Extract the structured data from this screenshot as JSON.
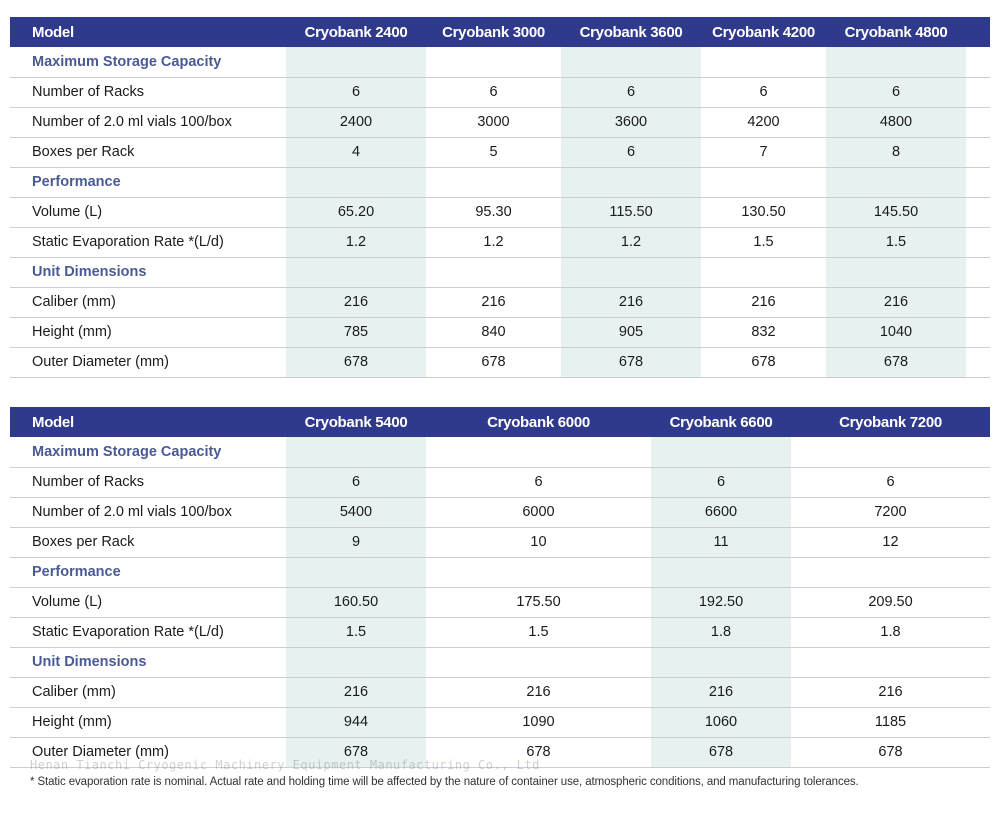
{
  "table1": {
    "model_label": "Model",
    "models": [
      "Cryobank 2400",
      "Cryobank 3000",
      "Cryobank 3600",
      "Cryobank 4200",
      "Cryobank 4800"
    ],
    "sections": [
      {
        "title": "Maximum Storage Capacity",
        "rows": [
          {
            "label": "Number of Racks",
            "values": [
              "6",
              "6",
              "6",
              "6",
              "6"
            ]
          },
          {
            "label": "Number of 2.0 ml vials 100/box",
            "values": [
              "2400",
              "3000",
              "3600",
              "4200",
              "4800"
            ]
          },
          {
            "label": "Boxes per Rack",
            "values": [
              "4",
              "5",
              "6",
              "7",
              "8"
            ]
          }
        ]
      },
      {
        "title": "Performance",
        "rows": [
          {
            "label": "Volume (L)",
            "values": [
              "65.20",
              "95.30",
              "115.50",
              "130.50",
              "145.50"
            ]
          },
          {
            "label": "Static Evaporation Rate *(L/d)",
            "values": [
              "1.2",
              "1.2",
              "1.2",
              "1.5",
              "1.5"
            ]
          }
        ]
      },
      {
        "title": "Unit Dimensions",
        "rows": [
          {
            "label": "Caliber (mm)",
            "values": [
              "216",
              "216",
              "216",
              "216",
              "216"
            ]
          },
          {
            "label": "Height (mm)",
            "values": [
              "785",
              "840",
              "905",
              "832",
              "1040"
            ]
          },
          {
            "label": "Outer Diameter (mm)",
            "values": [
              "678",
              "678",
              "678",
              "678",
              "678"
            ]
          }
        ]
      }
    ]
  },
  "table2": {
    "model_label": "Model",
    "models": [
      "Cryobank 5400",
      "Cryobank 6000",
      "Cryobank 6600",
      "Cryobank 7200"
    ],
    "sections": [
      {
        "title": "Maximum Storage Capacity",
        "rows": [
          {
            "label": "Number of Racks",
            "values": [
              "6",
              "6",
              "6",
              "6"
            ]
          },
          {
            "label": "Number of 2.0 ml vials 100/box",
            "values": [
              "5400",
              "6000",
              "6600",
              "7200"
            ]
          },
          {
            "label": "Boxes per Rack",
            "values": [
              "9",
              "10",
              "11",
              "12"
            ]
          }
        ]
      },
      {
        "title": "Performance",
        "rows": [
          {
            "label": "Volume (L)",
            "values": [
              "160.50",
              "175.50",
              "192.50",
              "209.50"
            ]
          },
          {
            "label": "Static Evaporation Rate *(L/d)",
            "values": [
              "1.5",
              "1.5",
              "1.8",
              "1.8"
            ]
          }
        ]
      },
      {
        "title": "Unit Dimensions",
        "rows": [
          {
            "label": "Caliber (mm)",
            "values": [
              "216",
              "216",
              "216",
              "216"
            ]
          },
          {
            "label": "Height (mm)",
            "values": [
              "944",
              "1090",
              "1060",
              "1185"
            ]
          },
          {
            "label": "Outer Diameter (mm)",
            "values": [
              "678",
              "678",
              "678",
              "678"
            ]
          }
        ]
      }
    ]
  },
  "footnote": "* Static evaporation rate is nominal. Actual rate and holding time will be affected by the nature of container use, atmospheric conditions, and manufacturing tolerances.",
  "watermark": "Henan Tianchi Cryogenic Machinery Equipment Manufacturing Co., Ltd",
  "colors": {
    "header_bg": "#303a8c",
    "section_text": "#4a5a94",
    "column_tint": "#e7f1f0",
    "divider": "#c9ced6"
  }
}
